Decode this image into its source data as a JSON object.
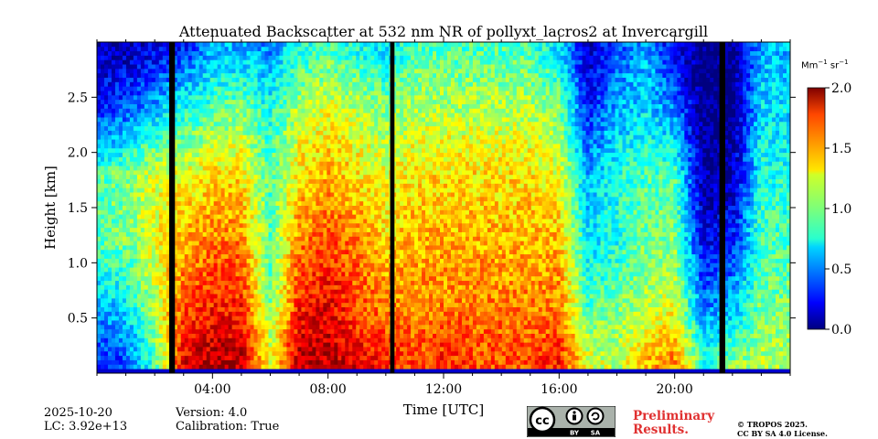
{
  "chart_data": {
    "type": "heatmap",
    "title": "Attenuated Backscatter at 532 nm NR of pollyxt_lacros2 at Invercargill",
    "xlabel": "Time [UTC]",
    "ylabel": "Height [km]",
    "xlim": [
      0,
      24
    ],
    "ylim": [
      0,
      3.0
    ],
    "x_ticks": [
      4,
      8,
      12,
      16,
      20
    ],
    "x_tick_labels": [
      "04:00",
      "08:00",
      "12:00",
      "16:00",
      "20:00"
    ],
    "y_ticks": [
      0.5,
      1.0,
      1.5,
      2.0,
      2.5
    ],
    "y_tick_labels": [
      "0.5",
      "1.0",
      "1.5",
      "2.0",
      "2.5"
    ],
    "colorbar": {
      "label": "Mm-1 sr-1",
      "min": 0.0,
      "max": 2.0,
      "ticks": [
        0.0,
        0.5,
        1.0,
        1.5,
        2.0
      ],
      "tick_labels": [
        "0.0",
        "0.5",
        "1.0",
        "1.5",
        "2.0"
      ],
      "colormap": "jet"
    },
    "no_data_intervals_utc_hours": [
      [
        2.5,
        2.7
      ],
      [
        10.15,
        10.3
      ],
      [
        21.55,
        21.75
      ]
    ],
    "profile_column_heights_km": [
      0.1,
      0.6,
      1.2,
      1.8,
      2.4,
      2.95
    ],
    "profile_columns": [
      {
        "t": 0.0,
        "b": [
          0.3,
          0.6,
          0.9,
          0.9,
          0.3,
          0.1
        ]
      },
      {
        "t": 1.0,
        "b": [
          0.4,
          0.7,
          1.0,
          1.0,
          0.4,
          0.1
        ]
      },
      {
        "t": 2.0,
        "b": [
          0.9,
          1.1,
          1.2,
          1.2,
          0.6,
          0.2
        ]
      },
      {
        "t": 3.0,
        "b": [
          1.8,
          1.6,
          1.4,
          1.2,
          0.8,
          0.3
        ]
      },
      {
        "t": 4.0,
        "b": [
          1.9,
          1.7,
          1.5,
          1.3,
          0.9,
          0.6
        ]
      },
      {
        "t": 5.0,
        "b": [
          1.9,
          1.7,
          1.5,
          1.3,
          1.0,
          0.6
        ]
      },
      {
        "t": 6.0,
        "b": [
          1.2,
          1.0,
          0.9,
          0.9,
          0.8,
          0.5
        ]
      },
      {
        "t": 7.0,
        "b": [
          1.9,
          1.7,
          1.5,
          1.3,
          1.1,
          0.8
        ]
      },
      {
        "t": 8.0,
        "b": [
          1.9,
          1.8,
          1.6,
          1.4,
          1.2,
          0.9
        ]
      },
      {
        "t": 9.0,
        "b": [
          1.8,
          1.6,
          1.5,
          1.3,
          1.1,
          0.8
        ]
      },
      {
        "t": 10.0,
        "b": [
          1.7,
          1.5,
          1.3,
          1.2,
          1.0,
          0.7
        ]
      },
      {
        "t": 11.0,
        "b": [
          1.6,
          1.5,
          1.4,
          1.3,
          1.1,
          0.9
        ]
      },
      {
        "t": 12.0,
        "b": [
          1.7,
          1.5,
          1.4,
          1.3,
          1.1,
          0.9
        ]
      },
      {
        "t": 13.0,
        "b": [
          1.6,
          1.5,
          1.4,
          1.3,
          1.1,
          0.9
        ]
      },
      {
        "t": 14.0,
        "b": [
          1.6,
          1.5,
          1.4,
          1.3,
          1.1,
          0.9
        ]
      },
      {
        "t": 15.0,
        "b": [
          1.6,
          1.5,
          1.4,
          1.3,
          1.1,
          0.9
        ]
      },
      {
        "t": 16.0,
        "b": [
          1.7,
          1.5,
          1.4,
          1.2,
          1.0,
          0.7
        ]
      },
      {
        "t": 17.0,
        "b": [
          1.2,
          0.9,
          0.7,
          0.6,
          0.3,
          0.1
        ]
      },
      {
        "t": 18.0,
        "b": [
          1.1,
          1.0,
          0.8,
          0.8,
          0.6,
          0.4
        ]
      },
      {
        "t": 19.0,
        "b": [
          1.4,
          1.1,
          1.0,
          0.9,
          0.7,
          0.6
        ]
      },
      {
        "t": 20.0,
        "b": [
          1.5,
          1.2,
          1.0,
          0.9,
          0.5,
          0.2
        ]
      },
      {
        "t": 21.0,
        "b": [
          0.8,
          0.5,
          0.2,
          0.05,
          0.0,
          0.0
        ]
      },
      {
        "t": 22.0,
        "b": [
          1.0,
          0.6,
          0.3,
          0.1,
          0.0,
          0.0
        ]
      },
      {
        "t": 23.0,
        "b": [
          1.1,
          1.0,
          0.9,
          0.8,
          0.7,
          0.6
        ]
      },
      {
        "t": 24.0,
        "b": [
          1.1,
          1.0,
          0.9,
          0.8,
          0.7,
          0.6
        ]
      }
    ]
  },
  "footer": {
    "date": "2025-10-20",
    "lc": "LC: 3.92e+13",
    "version": "Version: 4.0",
    "calibration": "Calibration: True",
    "preliminary_line1": "Preliminary",
    "preliminary_line2": "Results.",
    "copyright_line1": "© TROPOS 2025.",
    "copyright_line2": "CC BY SA 4.0 License.",
    "cc_badge": {
      "by": "BY",
      "sa": "SA"
    }
  },
  "colors": {
    "preliminary": "#e03030",
    "no_data": "#000000",
    "cloud_free_above_cloud": "#ffffff"
  }
}
